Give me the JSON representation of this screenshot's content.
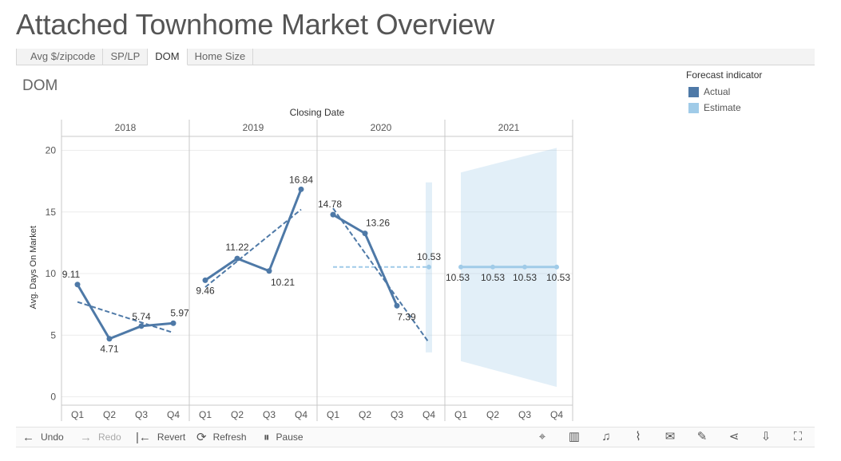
{
  "title": "Attached Townhome Market Overview",
  "tabs": [
    {
      "label": "Avg $/zipcode",
      "active": false
    },
    {
      "label": "SP/LP",
      "active": false
    },
    {
      "label": "DOM",
      "active": true
    },
    {
      "label": "Home Size",
      "active": false
    }
  ],
  "sheet_title": "DOM",
  "legend": {
    "title": "Forecast indicator",
    "items": [
      {
        "label": "Actual",
        "color": "#4e79a7"
      },
      {
        "label": "Estimate",
        "color": "#a0cbe8"
      }
    ]
  },
  "toolbar": {
    "undo": "Undo",
    "redo": "Redo",
    "revert": "Revert",
    "refresh": "Refresh",
    "pause": "Pause",
    "right_icons": [
      "tag-icon",
      "data-table-icon",
      "alert-icon",
      "metrics-icon",
      "subscribe-icon",
      "edit-icon",
      "share-icon",
      "download-icon",
      "fullscreen-icon"
    ]
  },
  "chart_data": {
    "type": "line",
    "header": "Closing Date",
    "years": [
      "2018",
      "2019",
      "2020",
      "2021"
    ],
    "quarters": [
      "Q1",
      "Q2",
      "Q3",
      "Q4"
    ],
    "ylabel": "Avg. Days On Market",
    "ylim": [
      0,
      21
    ],
    "yticks": [
      0,
      5,
      10,
      15,
      20
    ],
    "gridlines": true,
    "series": [
      {
        "name": "Actual",
        "color": "#4e79a7",
        "values": [
          [
            9.11,
            4.71,
            5.74,
            5.97
          ],
          [
            9.46,
            11.22,
            10.21,
            16.84
          ],
          [
            14.78,
            13.26,
            7.39,
            null
          ],
          [
            null,
            null,
            null,
            null
          ]
        ]
      },
      {
        "name": "Estimate",
        "color": "#a0cbe8",
        "values": [
          [
            null,
            null,
            null,
            null
          ],
          [
            null,
            null,
            null,
            null
          ],
          [
            null,
            null,
            null,
            10.53
          ],
          [
            10.53,
            10.53,
            10.53,
            10.53
          ]
        ]
      }
    ],
    "labels": [
      [
        "9.11",
        "4.71",
        "5.74",
        "5.97"
      ],
      [
        "9.46",
        "11.22",
        "10.21",
        "16.84"
      ],
      [
        "14.78",
        "13.26",
        "7.39",
        "10.53"
      ],
      [
        "10.53",
        "10.53",
        "10.53",
        "10.53"
      ]
    ],
    "trend_lines": [
      [
        7.7,
        5.2
      ],
      [
        8.9,
        15.2
      ],
      [
        15.3,
        4.4
      ]
    ],
    "estimate_mean_2020": 10.53,
    "prediction_band_2020_q4": [
      3.6,
      17.4
    ],
    "prediction_band_2021": {
      "upper": [
        18.2,
        20.2
      ],
      "lower": [
        2.9,
        0.8
      ]
    }
  }
}
